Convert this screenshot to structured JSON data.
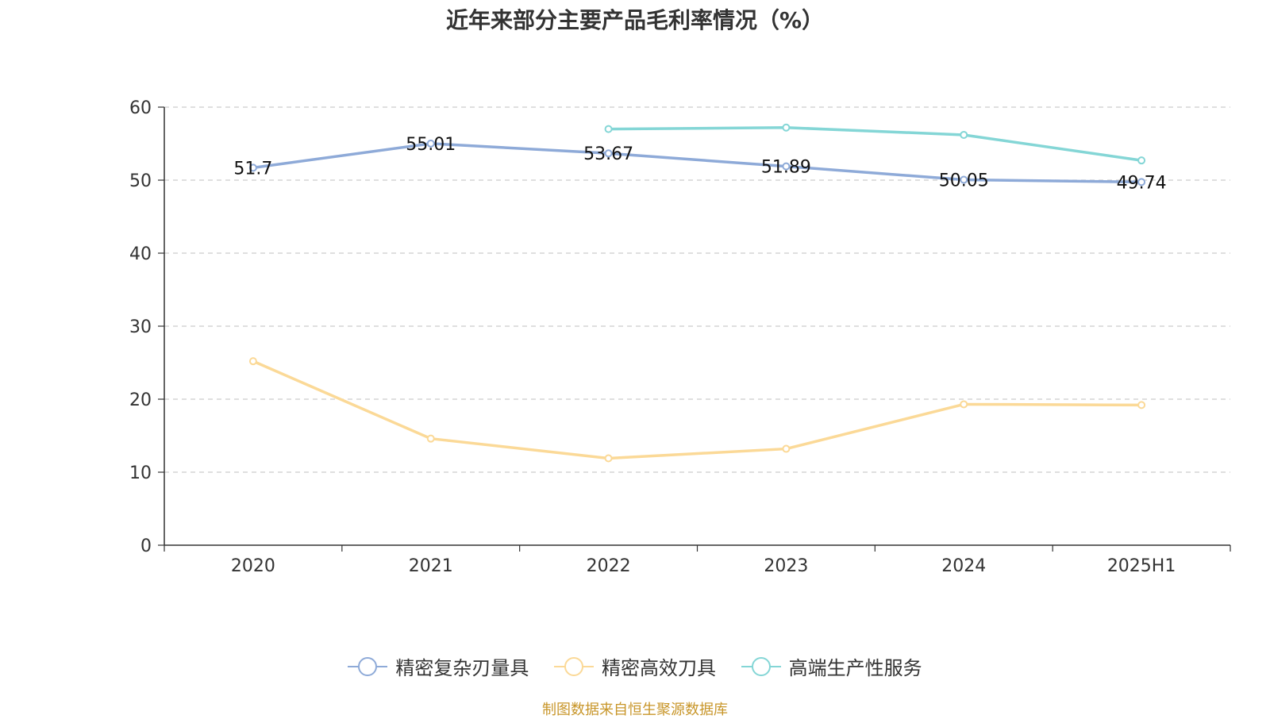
{
  "title": "近年来部分主要产品毛利率情况（%）",
  "source": "制图数据来自恒生聚源数据库",
  "chart_data": {
    "type": "line",
    "title": "近年来部分主要产品毛利率情况（%）",
    "categories": [
      "2020",
      "2021",
      "2022",
      "2023",
      "2024",
      "2025H1"
    ],
    "ylim": [
      0,
      60
    ],
    "yticks": [
      0,
      10,
      20,
      30,
      40,
      50,
      60
    ],
    "grid": true,
    "legend_position": "bottom",
    "series": [
      {
        "name": "精密复杂刃量具",
        "color": "#8eaad8",
        "values": [
          51.7,
          55.01,
          53.67,
          51.89,
          50.05,
          49.74
        ],
        "labels": [
          "51.7",
          "55.01",
          "53.67",
          "51.89",
          "50.05",
          "49.74"
        ]
      },
      {
        "name": "精密高效刀具",
        "color": "#fbd997",
        "values": [
          25.2,
          14.6,
          11.9,
          13.2,
          19.3,
          19.2
        ]
      },
      {
        "name": "高端生产性服务",
        "color": "#84d6d6",
        "values": [
          null,
          null,
          57.0,
          57.2,
          56.2,
          52.7
        ]
      }
    ]
  }
}
